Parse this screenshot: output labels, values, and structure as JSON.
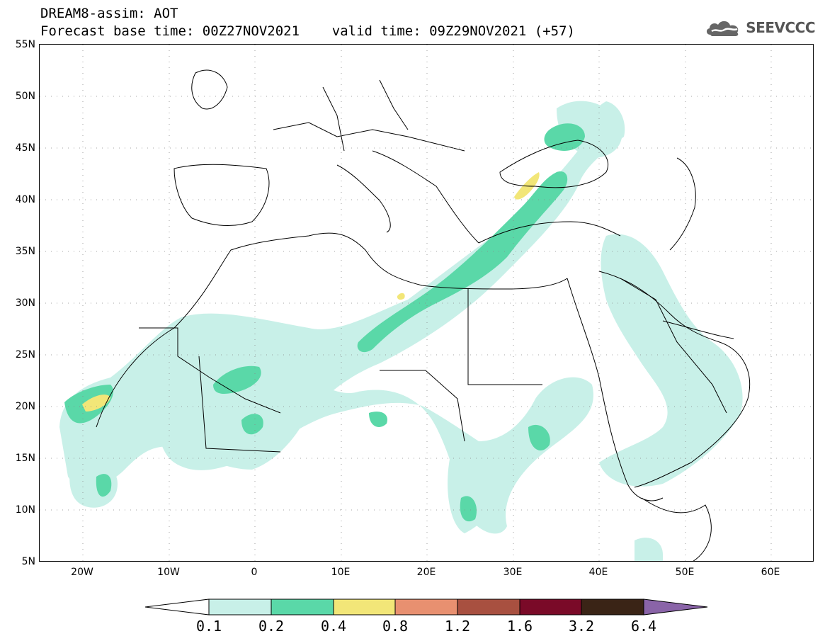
{
  "header": {
    "line1": "DREAM8-assim: AOT",
    "line2": "Forecast base time: 00Z27NOV2021    valid time: 09Z29NOV2021 (+57)",
    "logo_text": "SEEVCCC",
    "logo_icon": "cloud-logo-icon"
  },
  "map": {
    "lat_labels": [
      "55N",
      "50N",
      "45N",
      "40N",
      "35N",
      "30N",
      "25N",
      "20N",
      "15N",
      "10N",
      "5N"
    ],
    "lon_labels": [
      "20W",
      "10W",
      "0",
      "10E",
      "20E",
      "30E",
      "40E",
      "50E",
      "60E"
    ],
    "extent": {
      "lon": [
        -25,
        65
      ],
      "lat": [
        5,
        55
      ]
    }
  },
  "legend": {
    "levels": [
      "0.1",
      "0.2",
      "0.4",
      "0.8",
      "1.2",
      "1.6",
      "3.2",
      "6.4"
    ],
    "colors": [
      "#ffffff",
      "#c8f0e8",
      "#5ad8a8",
      "#f2e678",
      "#e89070",
      "#a85040",
      "#7a0a28",
      "#3a2416",
      "#8a64a8"
    ]
  }
}
